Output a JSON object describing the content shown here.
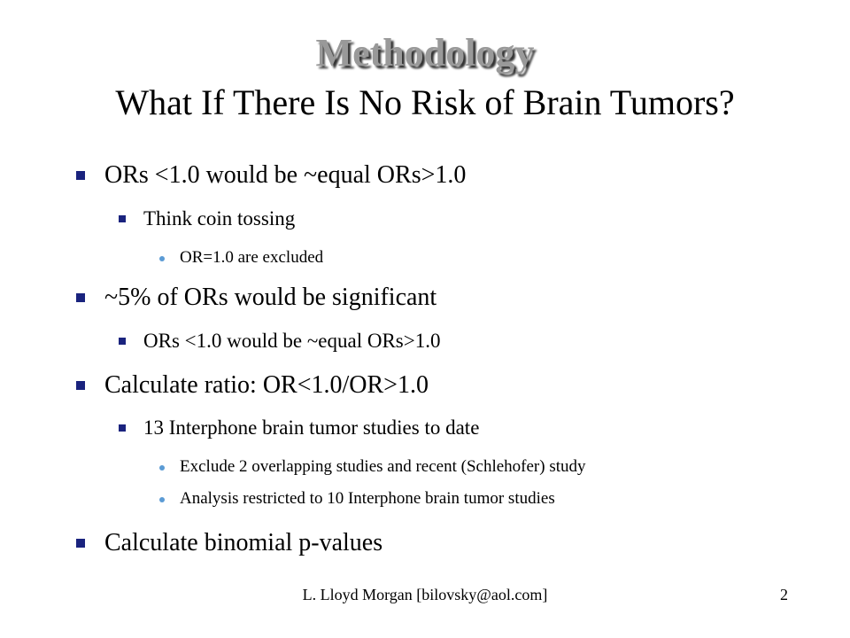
{
  "slide": {
    "title": "Methodology",
    "subtitle": "What If There Is No Risk of Brain Tumors?",
    "bullets": [
      {
        "level": 1,
        "text": "ORs <1.0 would be ~equal ORs>1.0"
      },
      {
        "level": 2,
        "text": "Think coin tossing"
      },
      {
        "level": 3,
        "text": "OR=1.0  are excluded"
      },
      {
        "level": 1,
        "text": "~5% of ORs would be significant"
      },
      {
        "level": 2,
        "text": "ORs <1.0 would be ~equal ORs>1.0"
      },
      {
        "level": 1,
        "text": "Calculate ratio: OR<1.0/OR>1.0"
      },
      {
        "level": 2,
        "text": "13 Interphone brain tumor studies to date"
      },
      {
        "level": 3,
        "text": "Exclude 2 overlapping studies and recent (Schlehofer) study"
      },
      {
        "level": 3,
        "text": "Analysis restricted to 10 Interphone brain tumor studies"
      },
      {
        "level": 1,
        "text": "Calculate binomial p-values"
      }
    ],
    "footer": "L. Lloyd Morgan  [bilovsky@aol.com]",
    "page_number": "2"
  },
  "colors": {
    "square_bullet": "#1a237e",
    "dot_bullet": "#5b9bd5",
    "title": "#999999"
  },
  "icons": {
    "level1": "square-bullet-icon",
    "level2": "square-bullet-icon",
    "level3": "dot-bullet-icon"
  }
}
